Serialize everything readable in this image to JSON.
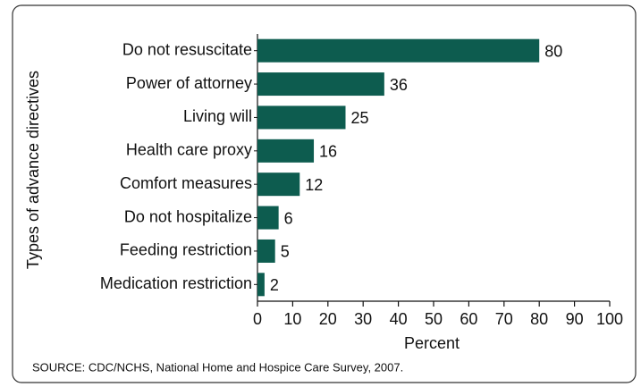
{
  "chart_data": {
    "type": "bar",
    "orientation": "horizontal",
    "categories": [
      "Do not resuscitate",
      "Power of attorney",
      "Living will",
      "Health care proxy",
      "Comfort measures",
      "Do not hospitalize",
      "Feeding restriction",
      "Medication restriction"
    ],
    "values": [
      80,
      36,
      25,
      16,
      12,
      6,
      5,
      2
    ],
    "color": "#0d5c4f",
    "xlabel": "Percent",
    "ylabel": "Types of advance directives",
    "xlim": [
      0,
      100
    ],
    "xticks": [
      0,
      10,
      20,
      30,
      40,
      50,
      60,
      70,
      80,
      90,
      100
    ],
    "source": "SOURCE: CDC/NCHS, National Home and Hospice Care Survey, 2007."
  }
}
